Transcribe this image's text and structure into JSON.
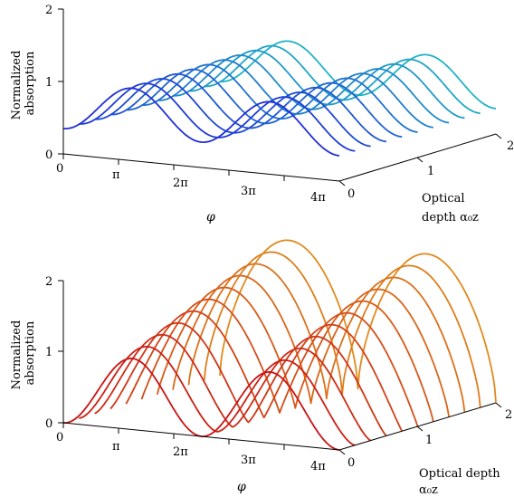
{
  "chart_data": [
    {
      "type": "line",
      "title": "",
      "zlabel_lines": [
        "Normalized",
        "absorption"
      ],
      "xlabel": "φ",
      "ylabel_lines": [
        "Optical",
        "depth α₀z"
      ],
      "x_ticks": [
        "0",
        "π",
        "2π",
        "3π",
        "4π"
      ],
      "y_ticks": [
        "0",
        "1",
        "2"
      ],
      "z_ticks": [
        "0",
        "1",
        "2"
      ],
      "xlim": [
        0,
        12.566
      ],
      "ylim": [
        0,
        2
      ],
      "zlim": [
        0,
        2
      ],
      "colormap": {
        "from": "#1f2fd8",
        "to": "#1fb3c4"
      },
      "series": [
        {
          "depth": 0.0,
          "peak": 1.0
        },
        {
          "depth": 0.2,
          "peak": 1.0
        },
        {
          "depth": 0.4,
          "peak": 1.0
        },
        {
          "depth": 0.6,
          "peak": 1.0
        },
        {
          "depth": 0.8,
          "peak": 1.0
        },
        {
          "depth": 1.0,
          "peak": 1.0
        },
        {
          "depth": 1.2,
          "peak": 1.0
        },
        {
          "depth": 1.4,
          "peak": 1.0
        },
        {
          "depth": 1.6,
          "peak": 1.0
        },
        {
          "depth": 1.8,
          "peak": 1.0
        },
        {
          "depth": 2.0,
          "peak": 1.0
        }
      ]
    },
    {
      "type": "line",
      "title": "",
      "zlabel_lines": [
        "Normalized",
        "absorption"
      ],
      "xlabel": "φ",
      "ylabel_lines": [
        "Optical depth",
        "α₀z"
      ],
      "x_ticks": [
        "0",
        "π",
        "2π",
        "3π",
        "4π"
      ],
      "y_ticks": [
        "0",
        "1",
        "2"
      ],
      "z_ticks": [
        "0",
        "1",
        "2"
      ],
      "xlim": [
        0,
        12.566
      ],
      "ylim": [
        0,
        2
      ],
      "zlim": [
        0,
        2
      ],
      "colormap": {
        "from": "#c81414",
        "to": "#e08a1e"
      },
      "series": [
        {
          "depth": 0.0,
          "peak": 1.0
        },
        {
          "depth": 0.2,
          "peak": 1.1
        },
        {
          "depth": 0.4,
          "peak": 1.2
        },
        {
          "depth": 0.6,
          "peak": 1.3
        },
        {
          "depth": 0.8,
          "peak": 1.4
        },
        {
          "depth": 1.0,
          "peak": 1.5
        },
        {
          "depth": 1.2,
          "peak": 1.6
        },
        {
          "depth": 1.4,
          "peak": 1.7
        },
        {
          "depth": 1.6,
          "peak": 1.8
        },
        {
          "depth": 1.8,
          "peak": 1.9
        },
        {
          "depth": 2.0,
          "peak": 2.0
        }
      ]
    }
  ]
}
